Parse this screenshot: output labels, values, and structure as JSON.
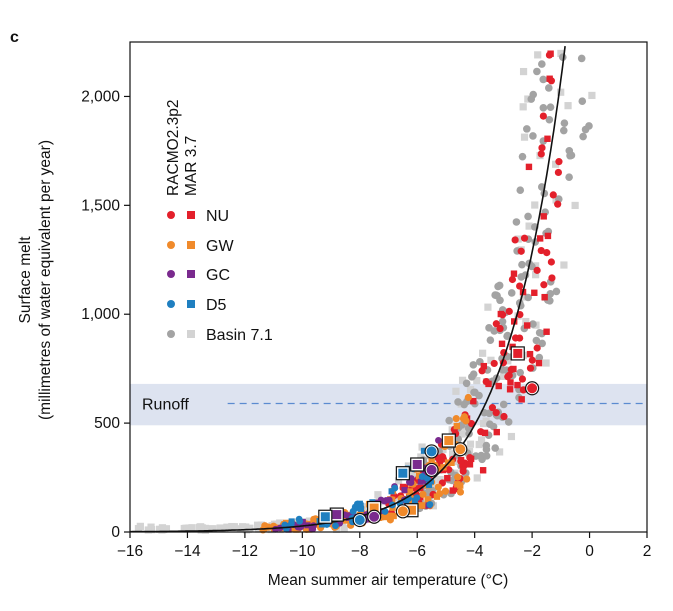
{
  "panel_label": "c",
  "chart_data": {
    "type": "scatter",
    "xlabel": "Mean summer air temperature (°C)",
    "ylabel_line1": "Surface melt",
    "ylabel_line2": "(millimetres of water equivalent per year)",
    "xlim": [
      -16,
      2
    ],
    "ylim": [
      0,
      2250
    ],
    "x_ticks": [
      -16,
      -14,
      -12,
      -10,
      -8,
      -6,
      -4,
      -2,
      0,
      2
    ],
    "x_tick_labels": [
      "−16",
      "−14",
      "−12",
      "−10",
      "−8",
      "−6",
      "−4",
      "−2",
      "0",
      "2"
    ],
    "y_ticks": [
      0,
      500,
      1000,
      1500,
      2000
    ],
    "y_tick_labels": [
      "0",
      "500",
      "1,000",
      "1,500",
      "2,000"
    ],
    "grid": false,
    "legend_placement": "top-left",
    "model_labels": [
      "RACMO2.3p2",
      "MAR 3.7"
    ],
    "runoff_band": {
      "label": "Runoff",
      "ymin": 490,
      "ymax": 680,
      "line_y": 590,
      "color": "#dde3f0",
      "line_color": "#5b8bd0"
    },
    "fit_curve": {
      "form": "exponential",
      "a": 1.55,
      "b": 0.48,
      "x0": 16,
      "color": "#111111"
    },
    "series": [
      {
        "name": "NU",
        "color": "#e3202b",
        "highlight_points": [
          {
            "x": -2.5,
            "y": 820,
            "marker": "square"
          },
          {
            "x": -2.0,
            "y": 660,
            "marker": "circle"
          }
        ]
      },
      {
        "name": "GW",
        "color": "#f08a2b",
        "highlight_points": [
          {
            "x": -4.5,
            "y": 380,
            "marker": "circle"
          },
          {
            "x": -4.9,
            "y": 420,
            "marker": "square"
          },
          {
            "x": -6.2,
            "y": 100,
            "marker": "square"
          },
          {
            "x": -7.5,
            "y": 110,
            "marker": "square"
          },
          {
            "x": -6.5,
            "y": 95,
            "marker": "circle"
          }
        ]
      },
      {
        "name": "GC",
        "color": "#7a2a8e",
        "highlight_points": [
          {
            "x": -5.5,
            "y": 285,
            "marker": "circle"
          },
          {
            "x": -6.0,
            "y": 310,
            "marker": "square"
          },
          {
            "x": -8.8,
            "y": 80,
            "marker": "square"
          },
          {
            "x": -7.5,
            "y": 70,
            "marker": "circle"
          }
        ]
      },
      {
        "name": "D5",
        "color": "#1f7fc0",
        "highlight_points": [
          {
            "x": -5.5,
            "y": 370,
            "marker": "circle"
          },
          {
            "x": -6.5,
            "y": 270,
            "marker": "square"
          },
          {
            "x": -9.2,
            "y": 70,
            "marker": "square"
          },
          {
            "x": -8.0,
            "y": 55,
            "marker": "circle"
          }
        ]
      },
      {
        "name": "Basin 7.1",
        "color": "#9e9e9e",
        "highlight_points": []
      }
    ]
  }
}
